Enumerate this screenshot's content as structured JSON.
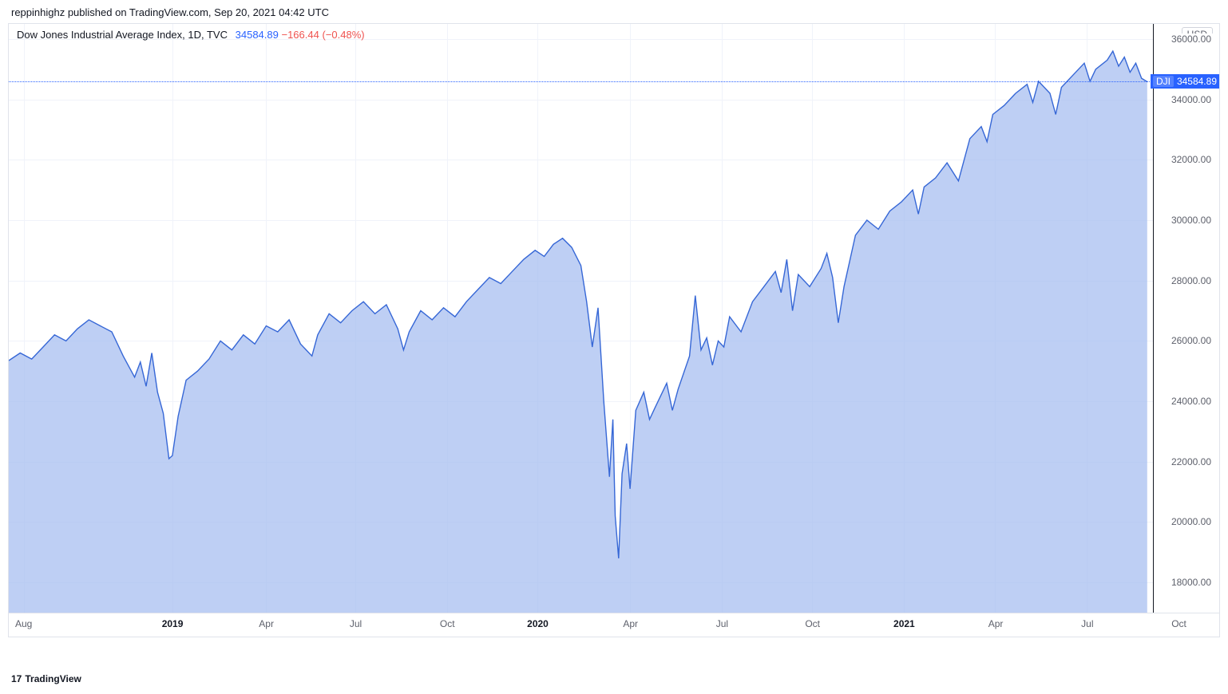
{
  "header": {
    "publish_text": "reppinhighz published on TradingView.com, Sep 20, 2021 04:42 UTC"
  },
  "legend": {
    "title": "Dow Jones Industrial Average Index, 1D, TVC",
    "value": "34584.89",
    "change": "−166.44",
    "change_pct": "(−0.48%)"
  },
  "usd_pill": "USD",
  "watermark": "TradingView",
  "watermark_prefix": "17",
  "chart": {
    "type": "area",
    "line_color": "#3667d6",
    "fill_color": "#a2bbf0",
    "fill_opacity": 0.7,
    "background_color": "#ffffff",
    "grid_color": "#f0f3fa",
    "ymin": 17000,
    "ymax": 36500,
    "y_ticks": [
      18000,
      20000,
      22000,
      24000,
      26000,
      28000,
      30000,
      32000,
      34000,
      36000
    ],
    "y_tick_labels": [
      "18000.00",
      "20000.00",
      "22000.00",
      "24000.00",
      "26000.00",
      "28000.00",
      "30000.00",
      "32000.00",
      "34000.00",
      "36000.00"
    ],
    "x_ticks": [
      {
        "pos": 0.013,
        "label": "Aug",
        "bold": false
      },
      {
        "pos": 0.143,
        "label": "2019",
        "bold": true
      },
      {
        "pos": 0.225,
        "label": "Apr",
        "bold": false
      },
      {
        "pos": 0.303,
        "label": "Jul",
        "bold": false
      },
      {
        "pos": 0.383,
        "label": "Oct",
        "bold": false
      },
      {
        "pos": 0.462,
        "label": "2020",
        "bold": true
      },
      {
        "pos": 0.543,
        "label": "Apr",
        "bold": false
      },
      {
        "pos": 0.623,
        "label": "Jul",
        "bold": false
      },
      {
        "pos": 0.702,
        "label": "Oct",
        "bold": false
      },
      {
        "pos": 0.782,
        "label": "2021",
        "bold": true
      },
      {
        "pos": 0.862,
        "label": "Apr",
        "bold": false
      },
      {
        "pos": 0.942,
        "label": "Jul",
        "bold": false
      },
      {
        "pos": 1.022,
        "label": "Oct",
        "bold": false
      }
    ],
    "current_price": 34584.89,
    "current_badge_symbol": "DJI",
    "current_badge_value": "34584.89",
    "data": [
      {
        "x": 0.0,
        "y": 25350
      },
      {
        "x": 0.01,
        "y": 25600
      },
      {
        "x": 0.02,
        "y": 25400
      },
      {
        "x": 0.03,
        "y": 25800
      },
      {
        "x": 0.04,
        "y": 26200
      },
      {
        "x": 0.05,
        "y": 26000
      },
      {
        "x": 0.06,
        "y": 26400
      },
      {
        "x": 0.07,
        "y": 26700
      },
      {
        "x": 0.08,
        "y": 26500
      },
      {
        "x": 0.09,
        "y": 26300
      },
      {
        "x": 0.1,
        "y": 25500
      },
      {
        "x": 0.11,
        "y": 24800
      },
      {
        "x": 0.115,
        "y": 25300
      },
      {
        "x": 0.12,
        "y": 24500
      },
      {
        "x": 0.125,
        "y": 25600
      },
      {
        "x": 0.13,
        "y": 24300
      },
      {
        "x": 0.135,
        "y": 23600
      },
      {
        "x": 0.14,
        "y": 22100
      },
      {
        "x": 0.143,
        "y": 22200
      },
      {
        "x": 0.148,
        "y": 23500
      },
      {
        "x": 0.155,
        "y": 24700
      },
      {
        "x": 0.165,
        "y": 25000
      },
      {
        "x": 0.175,
        "y": 25400
      },
      {
        "x": 0.185,
        "y": 26000
      },
      {
        "x": 0.195,
        "y": 25700
      },
      {
        "x": 0.205,
        "y": 26200
      },
      {
        "x": 0.215,
        "y": 25900
      },
      {
        "x": 0.225,
        "y": 26500
      },
      {
        "x": 0.235,
        "y": 26300
      },
      {
        "x": 0.245,
        "y": 26700
      },
      {
        "x": 0.255,
        "y": 25900
      },
      {
        "x": 0.265,
        "y": 25500
      },
      {
        "x": 0.27,
        "y": 26200
      },
      {
        "x": 0.28,
        "y": 26900
      },
      {
        "x": 0.29,
        "y": 26600
      },
      {
        "x": 0.3,
        "y": 27000
      },
      {
        "x": 0.31,
        "y": 27300
      },
      {
        "x": 0.32,
        "y": 26900
      },
      {
        "x": 0.33,
        "y": 27200
      },
      {
        "x": 0.34,
        "y": 26400
      },
      {
        "x": 0.345,
        "y": 25700
      },
      {
        "x": 0.35,
        "y": 26300
      },
      {
        "x": 0.36,
        "y": 27000
      },
      {
        "x": 0.37,
        "y": 26700
      },
      {
        "x": 0.38,
        "y": 27100
      },
      {
        "x": 0.39,
        "y": 26800
      },
      {
        "x": 0.4,
        "y": 27300
      },
      {
        "x": 0.41,
        "y": 27700
      },
      {
        "x": 0.42,
        "y": 28100
      },
      {
        "x": 0.43,
        "y": 27900
      },
      {
        "x": 0.44,
        "y": 28300
      },
      {
        "x": 0.45,
        "y": 28700
      },
      {
        "x": 0.46,
        "y": 29000
      },
      {
        "x": 0.468,
        "y": 28800
      },
      {
        "x": 0.476,
        "y": 29200
      },
      {
        "x": 0.484,
        "y": 29400
      },
      {
        "x": 0.492,
        "y": 29100
      },
      {
        "x": 0.5,
        "y": 28500
      },
      {
        "x": 0.505,
        "y": 27300
      },
      {
        "x": 0.51,
        "y": 25800
      },
      {
        "x": 0.515,
        "y": 27100
      },
      {
        "x": 0.52,
        "y": 24000
      },
      {
        "x": 0.525,
        "y": 21500
      },
      {
        "x": 0.528,
        "y": 23400
      },
      {
        "x": 0.53,
        "y": 20200
      },
      {
        "x": 0.533,
        "y": 18800
      },
      {
        "x": 0.536,
        "y": 21600
      },
      {
        "x": 0.54,
        "y": 22600
      },
      {
        "x": 0.543,
        "y": 21100
      },
      {
        "x": 0.548,
        "y": 23700
      },
      {
        "x": 0.555,
        "y": 24300
      },
      {
        "x": 0.56,
        "y": 23400
      },
      {
        "x": 0.565,
        "y": 23800
      },
      {
        "x": 0.575,
        "y": 24600
      },
      {
        "x": 0.58,
        "y": 23700
      },
      {
        "x": 0.585,
        "y": 24400
      },
      {
        "x": 0.595,
        "y": 25500
      },
      {
        "x": 0.6,
        "y": 27500
      },
      {
        "x": 0.605,
        "y": 25700
      },
      {
        "x": 0.61,
        "y": 26100
      },
      {
        "x": 0.615,
        "y": 25200
      },
      {
        "x": 0.62,
        "y": 26000
      },
      {
        "x": 0.625,
        "y": 25800
      },
      {
        "x": 0.63,
        "y": 26800
      },
      {
        "x": 0.64,
        "y": 26300
      },
      {
        "x": 0.65,
        "y": 27300
      },
      {
        "x": 0.66,
        "y": 27800
      },
      {
        "x": 0.67,
        "y": 28300
      },
      {
        "x": 0.675,
        "y": 27600
      },
      {
        "x": 0.68,
        "y": 28700
      },
      {
        "x": 0.685,
        "y": 27000
      },
      {
        "x": 0.69,
        "y": 28200
      },
      {
        "x": 0.7,
        "y": 27800
      },
      {
        "x": 0.71,
        "y": 28400
      },
      {
        "x": 0.715,
        "y": 28900
      },
      {
        "x": 0.72,
        "y": 28100
      },
      {
        "x": 0.725,
        "y": 26600
      },
      {
        "x": 0.73,
        "y": 27800
      },
      {
        "x": 0.74,
        "y": 29500
      },
      {
        "x": 0.75,
        "y": 30000
      },
      {
        "x": 0.76,
        "y": 29700
      },
      {
        "x": 0.77,
        "y": 30300
      },
      {
        "x": 0.78,
        "y": 30600
      },
      {
        "x": 0.79,
        "y": 31000
      },
      {
        "x": 0.795,
        "y": 30200
      },
      {
        "x": 0.8,
        "y": 31100
      },
      {
        "x": 0.81,
        "y": 31400
      },
      {
        "x": 0.82,
        "y": 31900
      },
      {
        "x": 0.83,
        "y": 31300
      },
      {
        "x": 0.84,
        "y": 32700
      },
      {
        "x": 0.85,
        "y": 33100
      },
      {
        "x": 0.855,
        "y": 32600
      },
      {
        "x": 0.86,
        "y": 33500
      },
      {
        "x": 0.87,
        "y": 33800
      },
      {
        "x": 0.88,
        "y": 34200
      },
      {
        "x": 0.89,
        "y": 34500
      },
      {
        "x": 0.895,
        "y": 33900
      },
      {
        "x": 0.9,
        "y": 34600
      },
      {
        "x": 0.91,
        "y": 34200
      },
      {
        "x": 0.915,
        "y": 33500
      },
      {
        "x": 0.92,
        "y": 34400
      },
      {
        "x": 0.93,
        "y": 34800
      },
      {
        "x": 0.94,
        "y": 35200
      },
      {
        "x": 0.945,
        "y": 34600
      },
      {
        "x": 0.95,
        "y": 35000
      },
      {
        "x": 0.96,
        "y": 35300
      },
      {
        "x": 0.965,
        "y": 35600
      },
      {
        "x": 0.97,
        "y": 35100
      },
      {
        "x": 0.975,
        "y": 35400
      },
      {
        "x": 0.98,
        "y": 34900
      },
      {
        "x": 0.985,
        "y": 35200
      },
      {
        "x": 0.99,
        "y": 34700
      },
      {
        "x": 0.995,
        "y": 34584.89
      }
    ]
  }
}
